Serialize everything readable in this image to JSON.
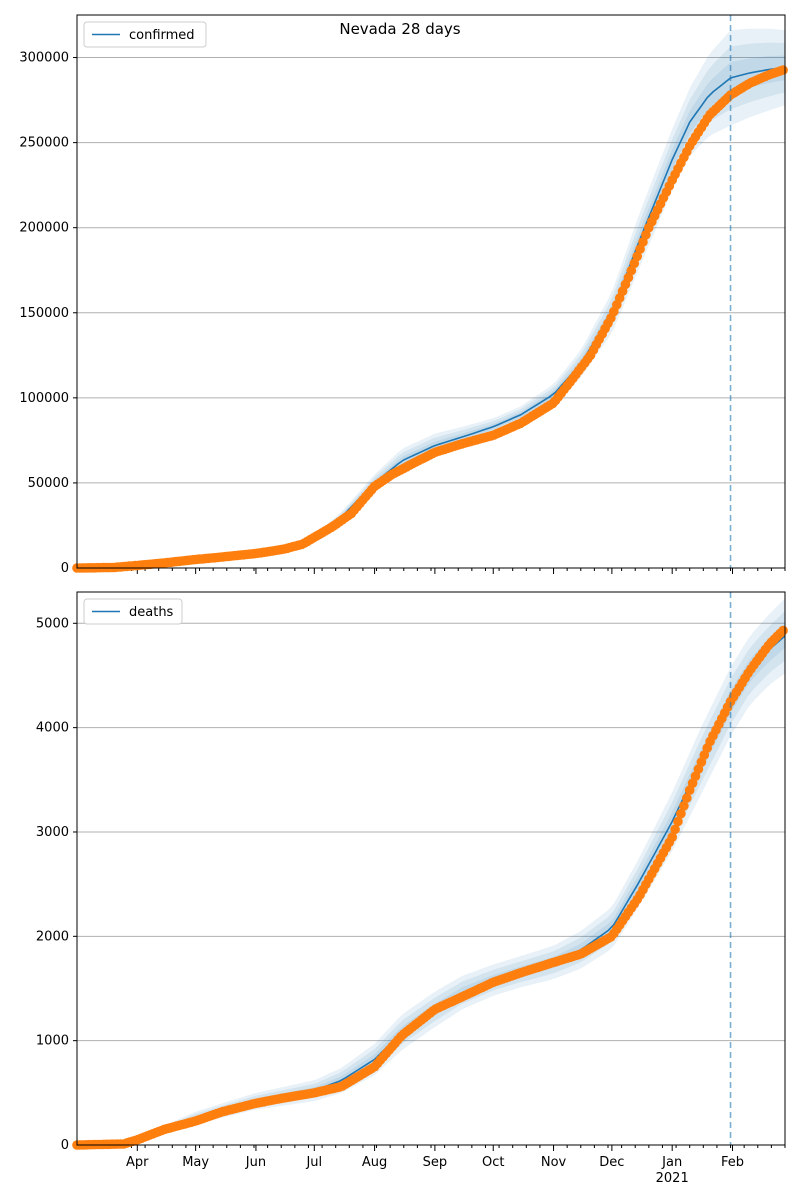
{
  "title": "Nevada 28 days",
  "colors": {
    "model_line": "#1f77b4",
    "band": "#1f77b4",
    "observed": "#ff7f0e",
    "forecast_start": "#1f77b4",
    "grid": "#b0b0b0"
  },
  "x_axis": {
    "start": "2020-03-01",
    "end": "2021-02-28",
    "tick_labels": [
      {
        "date": "2020-04-01",
        "label": "Apr"
      },
      {
        "date": "2020-05-01",
        "label": "May"
      },
      {
        "date": "2020-06-01",
        "label": "Jun"
      },
      {
        "date": "2020-07-01",
        "label": "Jul"
      },
      {
        "date": "2020-08-01",
        "label": "Aug"
      },
      {
        "date": "2020-09-01",
        "label": "Sep"
      },
      {
        "date": "2020-10-01",
        "label": "Oct"
      },
      {
        "date": "2020-11-01",
        "label": "Nov"
      },
      {
        "date": "2020-12-01",
        "label": "Dec"
      },
      {
        "date": "2021-01-01",
        "label": "Jan",
        "sublabel": "2021"
      },
      {
        "date": "2021-02-01",
        "label": "Feb"
      }
    ]
  },
  "chart_data": [
    {
      "type": "line",
      "legend": "confirmed",
      "legend_position": "upper-left",
      "grid": "y",
      "ylim": [
        0,
        325000
      ],
      "yticks": [
        0,
        50000,
        100000,
        150000,
        200000,
        250000,
        300000
      ],
      "forecast_start": "2021-01-31",
      "model": {
        "name": "confirmed",
        "x": [
          "2020-03-01",
          "2020-04-01",
          "2020-05-01",
          "2020-06-01",
          "2020-06-20",
          "2020-07-01",
          "2020-07-15",
          "2020-08-01",
          "2020-08-15",
          "2020-09-01",
          "2020-09-15",
          "2020-10-01",
          "2020-10-15",
          "2020-11-01",
          "2020-11-15",
          "2020-12-01",
          "2020-12-15",
          "2021-01-01",
          "2021-01-10",
          "2021-01-20",
          "2021-01-31",
          "2021-02-10",
          "2021-02-20",
          "2021-02-28"
        ],
        "y": [
          0,
          1500,
          5000,
          9000,
          13000,
          18000,
          30000,
          50000,
          63000,
          72000,
          77000,
          83000,
          90000,
          102000,
          120000,
          150000,
          192000,
          240000,
          262000,
          278000,
          288000,
          291000,
          293000,
          294000
        ],
        "band": [
          0,
          100,
          300,
          500,
          700,
          1500,
          3000,
          5000,
          7000,
          7000,
          6000,
          5000,
          5000,
          6000,
          8000,
          12000,
          16000,
          18000,
          20000,
          24000,
          28000,
          26000,
          24000,
          22000
        ]
      },
      "observed": {
        "name": "",
        "x": [
          "2020-03-01",
          "2020-03-20",
          "2020-04-01",
          "2020-04-15",
          "2020-05-01",
          "2020-05-15",
          "2020-06-01",
          "2020-06-15",
          "2020-06-25",
          "2020-07-01",
          "2020-07-10",
          "2020-07-20",
          "2020-08-01",
          "2020-08-10",
          "2020-08-20",
          "2020-09-01",
          "2020-09-15",
          "2020-10-01",
          "2020-10-15",
          "2020-11-01",
          "2020-11-10",
          "2020-11-20",
          "2020-12-01",
          "2020-12-10",
          "2020-12-20",
          "2021-01-01",
          "2021-01-10",
          "2021-01-20",
          "2021-01-31",
          "2021-02-10",
          "2021-02-20",
          "2021-02-28"
        ],
        "y": [
          0,
          300,
          1500,
          3000,
          5000,
          6500,
          8500,
          11000,
          14000,
          18000,
          24000,
          32000,
          48000,
          55000,
          61000,
          68000,
          73000,
          78000,
          85000,
          97000,
          110000,
          125000,
          148000,
          172000,
          200000,
          228000,
          248000,
          266000,
          278000,
          285000,
          290000,
          293000
        ]
      }
    },
    {
      "type": "line",
      "legend": "deaths",
      "legend_position": "upper-left",
      "grid": "y",
      "ylim": [
        0,
        5300
      ],
      "yticks": [
        0,
        1000,
        2000,
        3000,
        4000,
        5000
      ],
      "forecast_start": "2021-01-31",
      "model": {
        "name": "deaths",
        "x": [
          "2020-03-01",
          "2020-04-01",
          "2020-04-15",
          "2020-05-01",
          "2020-06-01",
          "2020-07-01",
          "2020-07-15",
          "2020-08-01",
          "2020-08-15",
          "2020-09-01",
          "2020-09-15",
          "2020-10-01",
          "2020-10-15",
          "2020-11-01",
          "2020-11-15",
          "2020-12-01",
          "2020-12-15",
          "2021-01-01",
          "2021-01-15",
          "2021-01-31",
          "2021-02-10",
          "2021-02-20",
          "2021-02-28"
        ],
        "y": [
          0,
          40,
          150,
          260,
          420,
          520,
          620,
          820,
          1080,
          1300,
          1460,
          1580,
          1660,
          1750,
          1870,
          2080,
          2520,
          3100,
          3650,
          4250,
          4550,
          4750,
          4880
        ],
        "band": [
          0,
          20,
          40,
          60,
          80,
          100,
          120,
          150,
          170,
          170,
          160,
          150,
          150,
          160,
          180,
          200,
          230,
          280,
          320,
          330,
          330,
          340,
          360
        ]
      },
      "observed": {
        "name": "",
        "x": [
          "2020-03-01",
          "2020-03-25",
          "2020-04-01",
          "2020-04-15",
          "2020-05-01",
          "2020-05-15",
          "2020-06-01",
          "2020-06-15",
          "2020-07-01",
          "2020-07-15",
          "2020-08-01",
          "2020-08-15",
          "2020-09-01",
          "2020-09-15",
          "2020-10-01",
          "2020-10-15",
          "2020-11-01",
          "2020-11-15",
          "2020-12-01",
          "2020-12-15",
          "2021-01-01",
          "2021-01-10",
          "2021-01-20",
          "2021-01-31",
          "2021-02-10",
          "2021-02-20",
          "2021-02-28"
        ],
        "y": [
          0,
          10,
          50,
          150,
          230,
          320,
          400,
          450,
          500,
          560,
          750,
          1050,
          1300,
          1420,
          1560,
          1650,
          1750,
          1830,
          2000,
          2380,
          2950,
          3400,
          3850,
          4250,
          4550,
          4800,
          4950
        ]
      }
    }
  ]
}
